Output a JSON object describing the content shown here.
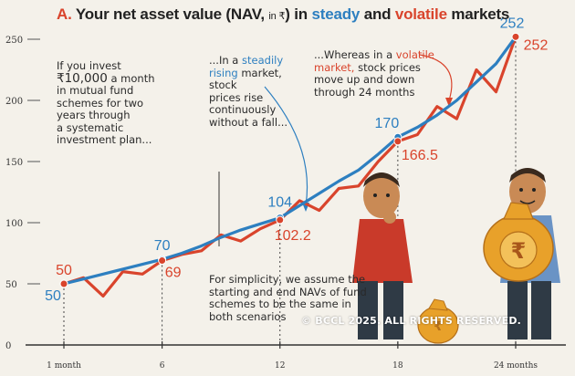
{
  "title": {
    "letter": "A.",
    "prefix": "Your net asset value (NAV,",
    "unit": "in ₹",
    "mid": ") in",
    "steady_word": "steady",
    "and_word": "and",
    "volatile_word": "volatile",
    "suffix": "markets"
  },
  "notes": {
    "intro_before": "If you invest",
    "intro_amount": "₹10,000",
    "intro_after_amount": "a month",
    "intro_rest": [
      "in mutual fund",
      "schemes for two",
      "years through",
      "a systematic",
      "investment plan..."
    ],
    "steady_prefix": "...In a",
    "steady_word": "steadily",
    "steady_line2_word": "rising",
    "steady_line2_rest": "market,",
    "steady_rest": [
      "stock",
      "prices rise",
      "continuously",
      "without a fall..."
    ],
    "volatile_prefix": "...Whereas in a",
    "volatile_word": "volatile",
    "volatile_line2_word": "market,",
    "volatile_line2_rest": "stock prices",
    "volatile_rest": [
      "move up and down",
      "through 24 months"
    ],
    "assumption": [
      "For simplicity, we assume the",
      "starting and end NAVs of fund",
      "schemes to be the same in",
      "both scenarios"
    ]
  },
  "copyright": "© BCCL 2025. ALL RIGHTS RESERVED.",
  "colors": {
    "steady": "#2d7fc0",
    "volatile": "#d9442c",
    "text": "#222222",
    "accent_red": "#d9442c"
  },
  "icons": [
    "investor-puzzled-illustration",
    "investor-happy-illustration",
    "money-bag-rupee-icon",
    "small-money-bag-icon"
  ],
  "chart_data": {
    "type": "line",
    "title": "Your net asset value (NAV, in ₹) in steady and volatile markets",
    "xlabel": "",
    "ylabel": "",
    "ylim": [
      0,
      255
    ],
    "y_ticks": [
      0,
      50,
      100,
      150,
      200,
      250
    ],
    "x_tick_labels": [
      {
        "x": 1,
        "label": "1 month"
      },
      {
        "x": 6,
        "label": "6"
      },
      {
        "x": 12,
        "label": "12"
      },
      {
        "x": 18,
        "label": "18"
      },
      {
        "x": 24,
        "label": "24 months"
      }
    ],
    "x": [
      1,
      2,
      3,
      4,
      5,
      6,
      7,
      8,
      9,
      10,
      11,
      12,
      13,
      14,
      15,
      16,
      17,
      18,
      19,
      20,
      21,
      22,
      23,
      24
    ],
    "series": [
      {
        "key": "steady",
        "color": "#2d7fc0",
        "values": [
          50,
          54,
          58,
          62,
          66,
          70,
          75,
          81,
          88,
          94,
          99,
          104,
          114,
          124,
          134,
          143,
          156,
          170,
          178,
          188,
          200,
          215,
          230,
          252
        ]
      },
      {
        "key": "volatile",
        "color": "#d9442c",
        "values": [
          50,
          55,
          40,
          60,
          58,
          69,
          74,
          77,
          90,
          85,
          95,
          102.2,
          118,
          110,
          128,
          130,
          150,
          166.5,
          172,
          195,
          185,
          225,
          207,
          252
        ]
      }
    ],
    "data_labels": [
      {
        "series": "steady",
        "x": 1,
        "text": "50"
      },
      {
        "series": "volatile",
        "x": 1,
        "text": "50"
      },
      {
        "series": "steady",
        "x": 6,
        "text": "70"
      },
      {
        "series": "volatile",
        "x": 6,
        "text": "69"
      },
      {
        "series": "steady",
        "x": 12,
        "text": "104"
      },
      {
        "series": "volatile",
        "x": 12,
        "text": "102.2"
      },
      {
        "series": "steady",
        "x": 18,
        "text": "170"
      },
      {
        "series": "volatile",
        "x": 18,
        "text": "166.5"
      },
      {
        "series": "steady",
        "x": 24,
        "text": "252"
      },
      {
        "series": "volatile",
        "x": 24,
        "text": "252"
      }
    ]
  }
}
